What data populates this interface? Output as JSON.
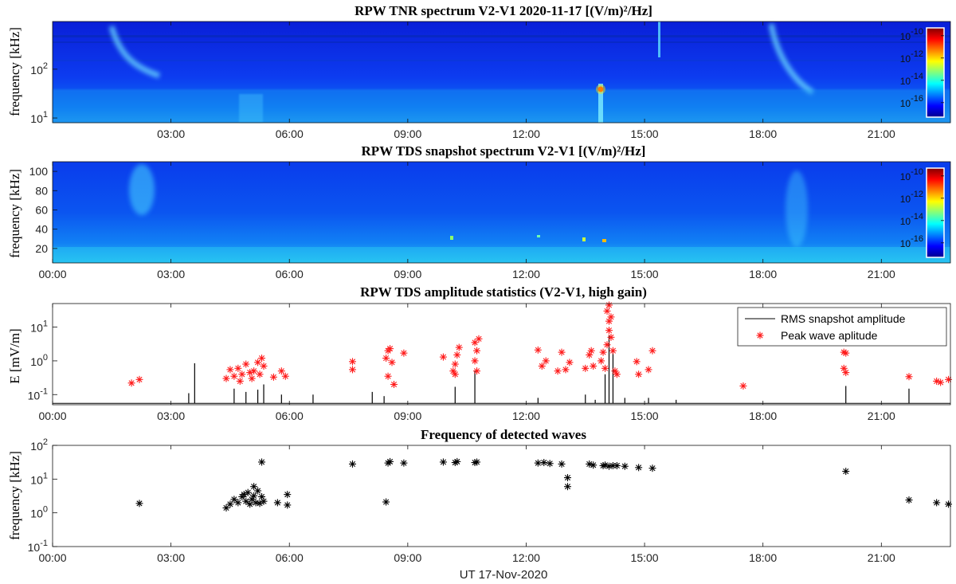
{
  "time_ticks": [
    "00:00",
    "03:00",
    "06:00",
    "09:00",
    "12:00",
    "15:00",
    "18:00",
    "21:00"
  ],
  "xlabel": "UT 17-Nov-2020",
  "colorbar_ticks": [
    "-10",
    "-12",
    "-14",
    "-16"
  ],
  "colorbar_base": "10",
  "colors": {
    "peak_marker": "#ff1a1a",
    "rms_line": "#000000",
    "detected_marker": "#000000"
  },
  "panels": {
    "tnr": {
      "title": "RPW TNR spectrum V2-V1 2020-11-17 [(V/m)²/Hz]",
      "ylabel": "frequency [kHz]",
      "yticks": [
        {
          "base": "10",
          "exp": "1",
          "value": 10
        },
        {
          "base": "10",
          "exp": "2",
          "value": 100
        }
      ],
      "ylim": [
        8,
        950
      ],
      "xticks_shown": [
        "03:00",
        "06:00",
        "09:00",
        "12:00",
        "15:00",
        "18:00",
        "21:00"
      ]
    },
    "tds_spec": {
      "title": "RPW TDS snapshot spectrum V2-V1 [(V/m)²/Hz]",
      "ylabel": "frequency [kHz]",
      "yticks": [
        "20",
        "40",
        "60",
        "80",
        "100"
      ],
      "ylim": [
        5,
        110
      ]
    },
    "amp": {
      "title": "RPW TDS amplitude statistics (V2-V1, high gain)",
      "ylabel": "E [mV/m]",
      "yticks": [
        {
          "base": "10",
          "exp": "-1",
          "value": 0.1
        },
        {
          "base": "10",
          "exp": "0",
          "value": 1
        },
        {
          "base": "10",
          "exp": "1",
          "value": 10
        }
      ],
      "legend": {
        "rms": "RMS snapshot amplitude",
        "peak": "Peak wave aplitude"
      }
    },
    "freq": {
      "title": "Frequency of detected waves",
      "ylabel": "frequency [kHz]",
      "yticks": [
        {
          "base": "10",
          "exp": "-1",
          "value": 0.1
        },
        {
          "base": "10",
          "exp": "0",
          "value": 1
        },
        {
          "base": "10",
          "exp": "1",
          "value": 10
        },
        {
          "base": "10",
          "exp": "2",
          "value": 100
        }
      ]
    }
  },
  "chart_data": [
    {
      "type": "heatmap",
      "title": "RPW TNR spectrum V2-V1 2020-11-17 [(V/m)²/Hz]",
      "ylabel": "frequency [kHz]",
      "x_range": [
        "00:30",
        "22:45"
      ],
      "y_scale": "log",
      "ylim": [
        8,
        950
      ],
      "colorbar": {
        "scale": "log",
        "range": [
          1e-17,
          1e-10
        ],
        "colormap": "jet"
      },
      "features": [
        {
          "time_hours": 1.8,
          "f_khz": [
            60,
            900
          ],
          "kind": "type III burst"
        },
        {
          "time_hours": 18.9,
          "f_khz": [
            60,
            900
          ],
          "kind": "type III burst"
        },
        {
          "time_hours": 14.1,
          "f_khz": [
            20,
            40
          ],
          "kind": "intense narrowband emission"
        }
      ]
    },
    {
      "type": "heatmap",
      "title": "RPW TDS snapshot spectrum V2-V1 [(V/m)²/Hz]",
      "ylabel": "frequency [kHz]",
      "x_range": [
        "00:00",
        "22:45"
      ],
      "y_scale": "linear",
      "ylim": [
        5,
        110
      ],
      "colorbar": {
        "scale": "log",
        "range": [
          1e-17,
          1e-10
        ],
        "colormap": "jet"
      }
    },
    {
      "type": "line",
      "title": "RPW TDS amplitude statistics (V2-V1, high gain)",
      "ylabel": "E [mV/m]",
      "y_scale": "log",
      "ylim": [
        0.05,
        50
      ],
      "x_units": "hours UT",
      "series": [
        {
          "name": "RMS snapshot amplitude",
          "baseline": 0.055,
          "spikes": [
            [
              3.6,
              0.85
            ],
            [
              3.45,
              0.11
            ],
            [
              4.6,
              0.15
            ],
            [
              4.9,
              0.12
            ],
            [
              5.2,
              0.14
            ],
            [
              5.35,
              0.2
            ],
            [
              6.6,
              0.1
            ],
            [
              5.8,
              0.1
            ],
            [
              8.1,
              0.12
            ],
            [
              8.4,
              0.09
            ],
            [
              10.2,
              0.17
            ],
            [
              10.7,
              0.52
            ],
            [
              12.3,
              0.08
            ],
            [
              13.5,
              0.1
            ],
            [
              13.75,
              0.07
            ],
            [
              14.0,
              0.4
            ],
            [
              14.1,
              5.5
            ],
            [
              14.2,
              2.0
            ],
            [
              14.5,
              0.08
            ],
            [
              15.1,
              0.08
            ],
            [
              20.1,
              0.18
            ],
            [
              21.7,
              0.15
            ],
            [
              15.8,
              0.07
            ]
          ]
        },
        {
          "name": "Peak wave aplitude",
          "marker": "asterisk",
          "points": [
            [
              2.0,
              0.22
            ],
            [
              2.2,
              0.28
            ],
            [
              4.4,
              0.3
            ],
            [
              4.5,
              0.55
            ],
            [
              4.6,
              0.35
            ],
            [
              4.7,
              0.6
            ],
            [
              4.8,
              0.4
            ],
            [
              4.9,
              0.8
            ],
            [
              5.0,
              0.45
            ],
            [
              5.1,
              0.5
            ],
            [
              5.2,
              0.9
            ],
            [
              5.3,
              1.2
            ],
            [
              5.35,
              0.7
            ],
            [
              5.25,
              0.4
            ],
            [
              4.75,
              0.25
            ],
            [
              5.05,
              0.3
            ],
            [
              5.6,
              0.33
            ],
            [
              5.8,
              0.5
            ],
            [
              5.9,
              0.35
            ],
            [
              7.6,
              0.55
            ],
            [
              7.6,
              0.95
            ],
            [
              8.5,
              0.35
            ],
            [
              8.45,
              1.2
            ],
            [
              8.5,
              2.0
            ],
            [
              8.55,
              2.3
            ],
            [
              8.6,
              0.9
            ],
            [
              8.65,
              0.2
            ],
            [
              8.9,
              1.7
            ],
            [
              9.9,
              1.3
            ],
            [
              10.15,
              0.5
            ],
            [
              10.2,
              0.8
            ],
            [
              10.25,
              1.5
            ],
            [
              10.3,
              2.5
            ],
            [
              10.2,
              0.4
            ],
            [
              10.7,
              1.0
            ],
            [
              10.75,
              2.0
            ],
            [
              10.7,
              3.5
            ],
            [
              10.8,
              4.5
            ],
            [
              10.75,
              0.5
            ],
            [
              12.3,
              2.1
            ],
            [
              12.4,
              0.7
            ],
            [
              12.5,
              1.0
            ],
            [
              12.8,
              0.5
            ],
            [
              12.9,
              1.8
            ],
            [
              13.0,
              0.55
            ],
            [
              13.1,
              0.9
            ],
            [
              13.5,
              0.6
            ],
            [
              13.6,
              1.5
            ],
            [
              13.65,
              2.0
            ],
            [
              13.7,
              0.7
            ],
            [
              13.9,
              1.0
            ],
            [
              13.95,
              1.8
            ],
            [
              14.0,
              0.6
            ],
            [
              14.05,
              3.0
            ],
            [
              14.1,
              8.0
            ],
            [
              14.1,
              15.0
            ],
            [
              14.15,
              20.0
            ],
            [
              14.05,
              30.0
            ],
            [
              14.1,
              45.0
            ],
            [
              14.15,
              5.0
            ],
            [
              14.2,
              2.0
            ],
            [
              14.25,
              0.5
            ],
            [
              14.3,
              0.4
            ],
            [
              14.8,
              0.95
            ],
            [
              14.85,
              0.4
            ],
            [
              15.1,
              0.55
            ],
            [
              15.2,
              2.0
            ],
            [
              17.5,
              0.18
            ],
            [
              20.05,
              1.8
            ],
            [
              20.1,
              1.7
            ],
            [
              20.05,
              0.6
            ],
            [
              20.1,
              0.45
            ],
            [
              21.7,
              0.34
            ],
            [
              22.4,
              0.25
            ],
            [
              22.5,
              0.23
            ],
            [
              22.7,
              0.28
            ]
          ]
        }
      ]
    },
    {
      "type": "scatter",
      "title": "Frequency of detected waves",
      "ylabel": "frequency [kHz]",
      "xlabel": "UT 17-Nov-2020",
      "y_scale": "log",
      "ylim": [
        0.1,
        100
      ],
      "x_units": "hours UT",
      "marker": "asterisk",
      "points": [
        [
          2.2,
          1.9
        ],
        [
          4.4,
          1.4
        ],
        [
          4.5,
          1.8
        ],
        [
          4.6,
          2.5
        ],
        [
          4.7,
          2.0
        ],
        [
          4.8,
          3.0
        ],
        [
          4.9,
          2.2
        ],
        [
          4.95,
          4.0
        ],
        [
          5.0,
          1.8
        ],
        [
          5.05,
          2.5
        ],
        [
          5.1,
          3.2
        ],
        [
          5.15,
          2.0
        ],
        [
          5.2,
          4.5
        ],
        [
          5.25,
          1.9
        ],
        [
          5.3,
          3.0
        ],
        [
          5.35,
          2.2
        ],
        [
          5.1,
          6.0
        ],
        [
          4.85,
          3.5
        ],
        [
          5.3,
          32.0
        ],
        [
          5.7,
          2.0
        ],
        [
          5.95,
          1.7
        ],
        [
          5.95,
          3.5
        ],
        [
          7.6,
          28.0
        ],
        [
          8.45,
          2.1
        ],
        [
          8.5,
          30.0
        ],
        [
          8.55,
          33.0
        ],
        [
          8.9,
          30.0
        ],
        [
          9.9,
          32.0
        ],
        [
          10.2,
          31.0
        ],
        [
          10.25,
          33.0
        ],
        [
          10.7,
          31.0
        ],
        [
          10.75,
          32.0
        ],
        [
          12.3,
          30.0
        ],
        [
          12.45,
          31.0
        ],
        [
          12.6,
          29.0
        ],
        [
          12.9,
          28.0
        ],
        [
          13.05,
          11.0
        ],
        [
          13.05,
          6.0
        ],
        [
          13.6,
          28.0
        ],
        [
          13.7,
          26.0
        ],
        [
          13.95,
          25.0
        ],
        [
          14.0,
          26.0
        ],
        [
          14.1,
          24.0
        ],
        [
          14.2,
          25.0
        ],
        [
          14.3,
          25.0
        ],
        [
          14.5,
          24.0
        ],
        [
          14.85,
          22.0
        ],
        [
          15.2,
          21.0
        ],
        [
          20.1,
          17.0
        ],
        [
          21.7,
          2.4
        ],
        [
          22.4,
          2.0
        ],
        [
          22.7,
          1.8
        ]
      ]
    }
  ]
}
